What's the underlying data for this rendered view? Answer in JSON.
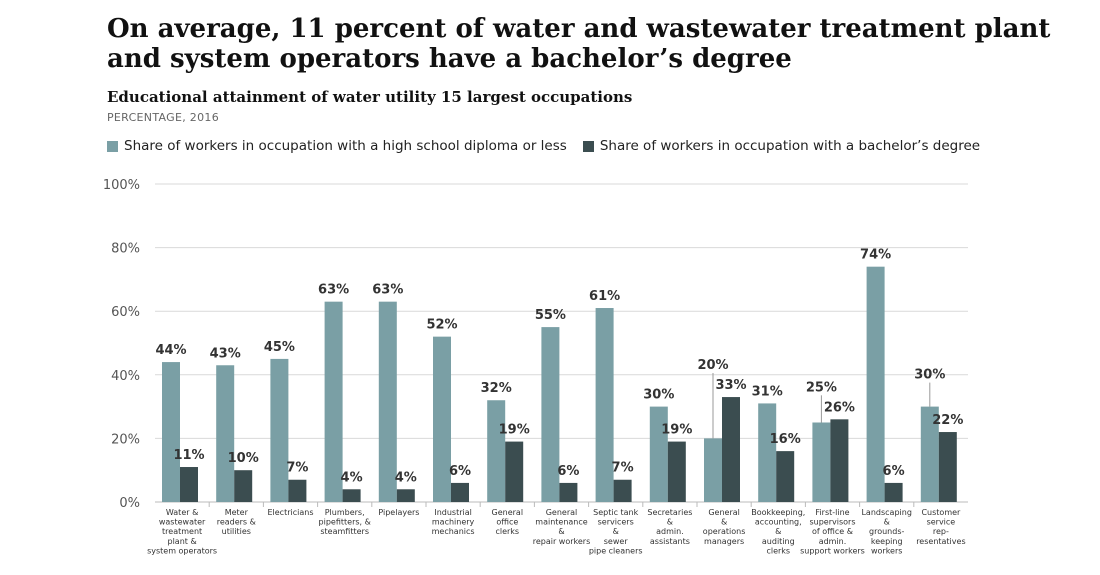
{
  "chart_data": {
    "type": "bar",
    "title": "On average, 11 percent of water and wastewater treatment plant and system operators have a bachelor’s degree",
    "subtitle": "Educational attainment of water utility 15 largest occupations",
    "note": "PERCENTAGE, 2016",
    "ylim": [
      0,
      100
    ],
    "yticks": [
      "0%",
      "20%",
      "40%",
      "60%",
      "80%",
      "100%"
    ],
    "categories": [
      [
        "Water &",
        "wastewater",
        "treatment",
        "plant &",
        "system operators"
      ],
      [
        "Meter",
        "readers &",
        "utilities"
      ],
      [
        "Electricians"
      ],
      [
        "Plumbers,",
        "pipefitters, &",
        "steamfitters"
      ],
      [
        "Pipelayers"
      ],
      [
        "Industrial",
        "machinery",
        "mechanics"
      ],
      [
        "General",
        "office",
        "clerks"
      ],
      [
        "General",
        "maintenance",
        "&",
        "repair workers"
      ],
      [
        "Septic tank",
        "servicers",
        "&",
        "sewer",
        "pipe cleaners"
      ],
      [
        "Secretaries",
        "&",
        "admin.",
        "assistants"
      ],
      [
        "General",
        "&",
        "operations",
        "managers"
      ],
      [
        "Bookkeeping,",
        "accounting,",
        "&",
        "auditing",
        "clerks"
      ],
      [
        "First-line",
        "supervisors",
        "of office &",
        "admin.",
        "support workers"
      ],
      [
        "Landscaping",
        "&",
        "grounds-",
        "keeping",
        "workers"
      ],
      [
        "Customer",
        "service",
        "rep-",
        "resentatives"
      ]
    ],
    "series": [
      {
        "name": "Share of workers in occupation with a high school diploma or less",
        "color": "#7a9fa5",
        "values": [
          44,
          43,
          45,
          63,
          63,
          52,
          32,
          55,
          61,
          30,
          20,
          31,
          25,
          74,
          30
        ],
        "labels": [
          "44%",
          "43%",
          "45%",
          "63%",
          "63%",
          "52%",
          "32%",
          "55%",
          "61%",
          "30%",
          "20%",
          "31%",
          "25%",
          "74%",
          "30%"
        ]
      },
      {
        "name": "Share of workers in occupation with a bachelor’s degree",
        "color": "#3b4d50",
        "values": [
          11,
          10,
          7,
          4,
          4,
          6,
          19,
          6,
          7,
          19,
          33,
          16,
          26,
          6,
          22
        ],
        "labels": [
          "11%",
          "10%",
          "7%",
          "4%",
          "4%",
          "6%",
          "19%",
          "6%",
          "7%",
          "19%",
          "33%",
          "16%",
          "26%",
          "6%",
          "22%"
        ]
      }
    ],
    "gridline_color": "#d9d9d9",
    "axis_color": "#bbbbbb"
  }
}
